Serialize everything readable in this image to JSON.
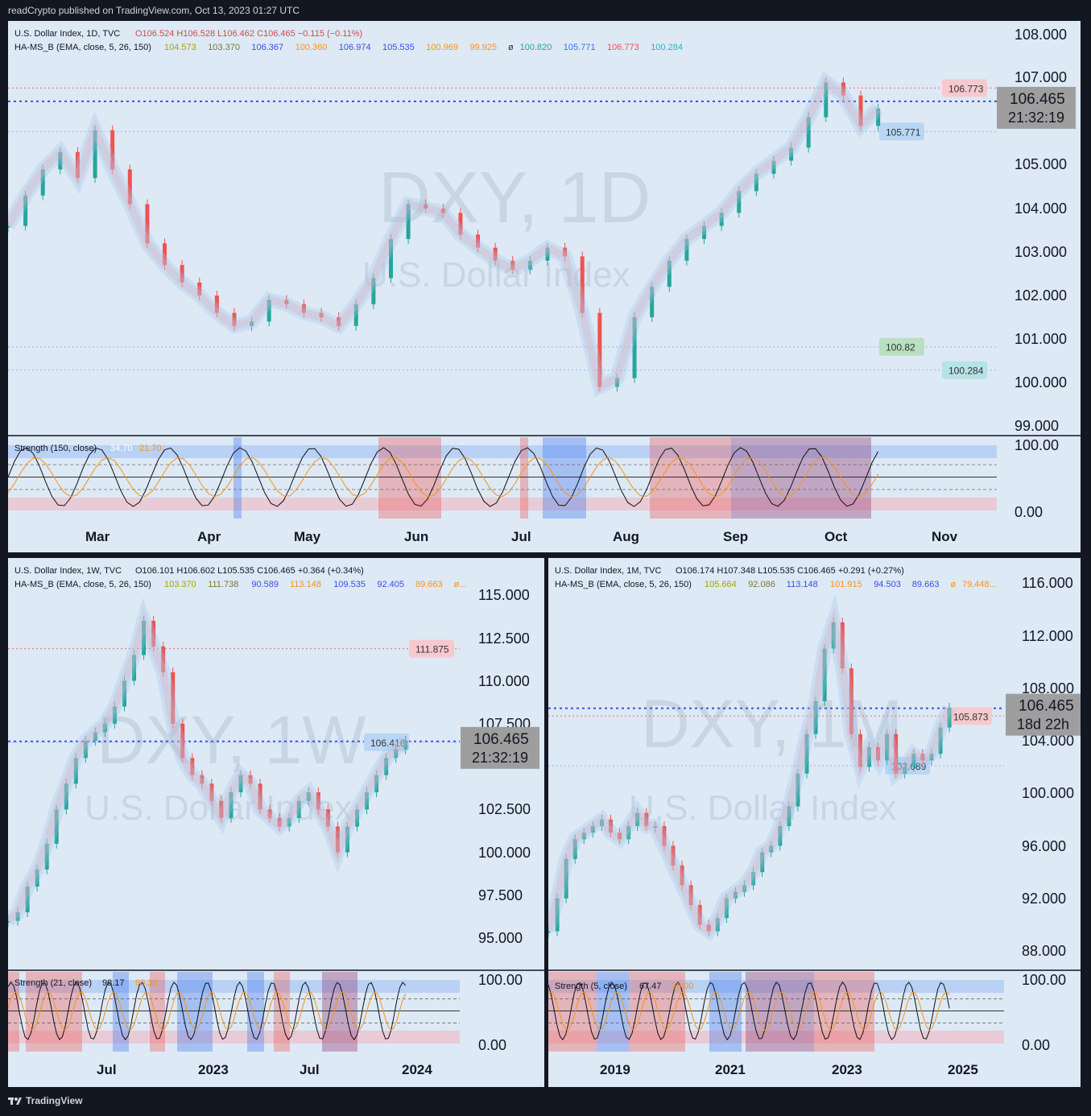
{
  "header": {
    "publisher": "readCrypto published on TradingView.com, Oct 13, 2023 01:27 UTC"
  },
  "footer": {
    "brand": "TradingView"
  },
  "colors": {
    "background": "#131722",
    "panel": "#dde9f5",
    "up": "#26a69a",
    "down": "#ef5350",
    "blue_line": "#3d4fe0",
    "green_line": "#32e01c",
    "light_blue_line": "#5b9cf0",
    "purple_line": "#8b1a4f",
    "strength_orange": "#f7931a"
  },
  "chart_data": [
    {
      "type": "line",
      "panel": "daily",
      "symbol_line": {
        "name": "U.S. Dollar Index, 1D, TVC",
        "ohlc": "O106.524  H106.528  L106.462  C106.465  −0.115 (−0.11%)"
      },
      "indicator_line": {
        "name": "HA-MS_B (EMA, close, 5, 26, 150)",
        "values": [
          "104.573",
          "103.370",
          "106.367",
          "100.360",
          "106.974",
          "105.535",
          "100.969",
          "99.925",
          "ø",
          "100.820",
          "105.771",
          "106.773",
          "100.284"
        ]
      },
      "watermark": "DXY, 1D",
      "watermark_sub": "U.S. Dollar Index",
      "ylim": [
        99.0,
        108.0
      ],
      "y_ticks": [
        "108.000",
        "107.000",
        "105.000",
        "104.000",
        "103.000",
        "102.000",
        "101.000",
        "100.000",
        "99.000"
      ],
      "x_ticks": [
        "Mar",
        "Apr",
        "May",
        "Jun",
        "Jul",
        "Aug",
        "Sep",
        "Oct",
        "Nov"
      ],
      "price_label": {
        "price": "106.465",
        "timer": "21:32:19"
      },
      "level_labels": [
        "106.773",
        "105.771",
        "100.82",
        "100.284"
      ],
      "series_close": [
        103.6,
        104.3,
        104.9,
        105.3,
        104.7,
        105.8,
        104.9,
        104.1,
        103.2,
        102.7,
        102.3,
        102.0,
        101.6,
        101.3,
        101.4,
        101.9,
        101.8,
        101.6,
        101.5,
        101.3,
        101.8,
        102.4,
        103.3,
        104.1,
        104.0,
        103.9,
        103.4,
        103.1,
        102.8,
        102.6,
        102.8,
        103.1,
        102.9,
        101.6,
        99.9,
        100.1,
        101.5,
        102.2,
        102.8,
        103.3,
        103.6,
        103.9,
        104.4,
        104.8,
        105.1,
        105.4,
        106.1,
        106.9,
        106.6,
        105.9,
        106.3
      ]
    },
    {
      "type": "line",
      "panel": "weekly",
      "symbol_line": {
        "name": "U.S. Dollar Index, 1W, TVC",
        "ohlc": "O106.101  H106.602  L105.535  C106.465  +0.364 (+0.34%)"
      },
      "indicator_line": {
        "name": "HA-MS_B (EMA, close, 5, 26, 150)",
        "values": [
          "103.370",
          "111.738",
          "90.589",
          "113.148",
          "109.535",
          "92.405",
          "89.663",
          "ø..."
        ]
      },
      "watermark": "DXY, 1W",
      "watermark_sub": "U.S. Dollar Index",
      "ylim": [
        94.0,
        116.0
      ],
      "y_ticks": [
        "115.000",
        "112.500",
        "110.000",
        "107.500",
        "102.500",
        "100.000",
        "97.500",
        "95.000"
      ],
      "x_ticks": [
        "Jul",
        "2023",
        "Jul",
        "2024"
      ],
      "price_label": {
        "price": "106.465",
        "timer": "21:32:19"
      },
      "level_labels": [
        "111.875",
        "106.416"
      ],
      "series_close": [
        96.0,
        96.5,
        98.0,
        99.0,
        100.5,
        102.5,
        104.0,
        105.5,
        106.5,
        107.0,
        107.5,
        108.5,
        110.0,
        111.5,
        113.5,
        112.0,
        110.5,
        107.5,
        105.5,
        104.5,
        104.0,
        103.0,
        102.0,
        103.5,
        104.5,
        104.0,
        102.5,
        102.0,
        101.5,
        102.0,
        103.0,
        103.5,
        102.5,
        101.5,
        100.0,
        101.5,
        102.5,
        103.5,
        104.5,
        105.5,
        106.0,
        106.5
      ]
    },
    {
      "type": "line",
      "panel": "monthly",
      "symbol_line": {
        "name": "U.S. Dollar Index, 1M, TVC",
        "ohlc": "O106.174  H107.348  L105.535  C106.465  +0.291 (+0.27%)"
      },
      "indicator_line": {
        "name": "HA-MS_B (EMA, close, 5, 26, 150)",
        "values": [
          "105.664",
          "92.086",
          "113.148",
          "101.915",
          "94.503",
          "89.663",
          "ø",
          "79.448..."
        ]
      },
      "watermark": "DXY, 1M",
      "watermark_sub": "U.S. Dollar Index",
      "ylim": [
        86.0,
        116.0
      ],
      "y_ticks": [
        "116.000",
        "112.000",
        "108.000",
        "104.000",
        "100.000",
        "96.000",
        "92.000",
        "88.000"
      ],
      "x_ticks": [
        "2019",
        "2021",
        "2023",
        "2025"
      ],
      "price_label": {
        "price": "106.465",
        "timer": "18d 22h"
      },
      "level_labels": [
        "105.873",
        "102.089"
      ],
      "series_close": [
        89.5,
        92.0,
        95.0,
        96.5,
        97.0,
        97.5,
        98.0,
        97.0,
        96.5,
        97.5,
        98.5,
        97.5,
        97.5,
        96.0,
        94.5,
        93.0,
        91.5,
        90.0,
        89.5,
        90.5,
        92.0,
        92.5,
        93.0,
        94.0,
        95.5,
        96.0,
        97.5,
        99.0,
        101.5,
        104.5,
        107.0,
        111.0,
        113.0,
        109.5,
        104.5,
        102.0,
        103.5,
        102.5,
        104.5,
        101.5,
        102.0,
        103.0,
        102.5,
        103.0,
        105.0,
        106.5
      ]
    }
  ],
  "strength": {
    "daily": {
      "label": "Strength (150, close)",
      "v1": "34.70",
      "v2": "21.70"
    },
    "weekly": {
      "label": "Strength (21, close)",
      "v1": "98.17",
      "v2": "90.30"
    },
    "monthly": {
      "label": "Strength (5, close)",
      "v1": "67.47",
      "v2": "38.00"
    },
    "ticks": [
      "100.00",
      "0.00"
    ]
  }
}
